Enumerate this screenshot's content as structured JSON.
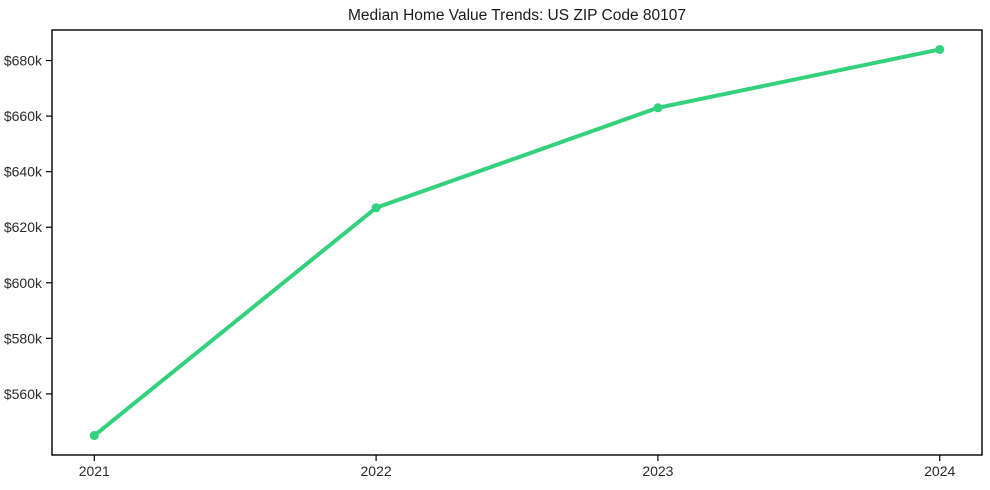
{
  "chart_data": {
    "type": "line",
    "title": "Median Home Value Trends: US ZIP Code 80107",
    "x": [
      2021,
      2022,
      2023,
      2024
    ],
    "values": [
      545000,
      627000,
      663000,
      684000
    ],
    "series_name": "Median Home Value",
    "xlabel": "",
    "ylabel": "",
    "xlim": [
      2020.85,
      2024.15
    ],
    "ylim": [
      538000,
      691000
    ],
    "xticks": [
      {
        "value": 2021,
        "label": "2021"
      },
      {
        "value": 2022,
        "label": "2022"
      },
      {
        "value": 2023,
        "label": "2023"
      },
      {
        "value": 2024,
        "label": "2024"
      }
    ],
    "yticks": [
      {
        "value": 560000,
        "label": "$560k"
      },
      {
        "value": 580000,
        "label": "$580k"
      },
      {
        "value": 600000,
        "label": "$600k"
      },
      {
        "value": 620000,
        "label": "$620k"
      },
      {
        "value": 640000,
        "label": "$640k"
      },
      {
        "value": 660000,
        "label": "$660k"
      },
      {
        "value": 680000,
        "label": "$680k"
      }
    ],
    "grid": "off",
    "legend": "none",
    "colors": {
      "line": "#34d17c",
      "marker": "#34d17c",
      "spine": "#000000",
      "background": "#ffffff",
      "tick_text": "#2b2b2b",
      "title_text": "#1a1a1a"
    },
    "line_width": 4,
    "marker_radius": 4.5
  }
}
